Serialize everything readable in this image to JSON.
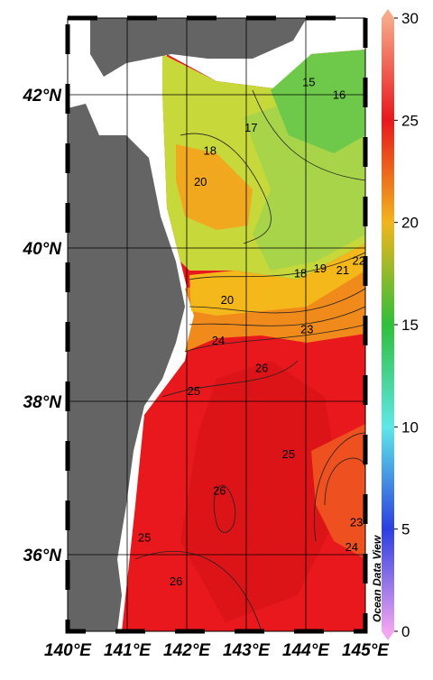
{
  "map": {
    "type": "contour-map",
    "xlim": [
      140,
      145
    ],
    "ylim": [
      35,
      43
    ],
    "xticks": [
      {
        "value": 140,
        "label": "140°E"
      },
      {
        "value": 141,
        "label": "141°E"
      },
      {
        "value": 142,
        "label": "142°E"
      },
      {
        "value": 143,
        "label": "143°E"
      },
      {
        "value": 144,
        "label": "144°E"
      },
      {
        "value": 145,
        "label": "145°E"
      }
    ],
    "yticks": [
      {
        "value": 36,
        "label": "36°N"
      },
      {
        "value": 38,
        "label": "38°N"
      },
      {
        "value": 40,
        "label": "40°N"
      },
      {
        "value": 42,
        "label": "42°N"
      }
    ],
    "grid": true,
    "colorbar": {
      "lim": [
        0,
        30
      ],
      "ticks": [
        0,
        5,
        10,
        15,
        20,
        25,
        30
      ],
      "colors": [
        "#f3a6f0",
        "#2b3fe0",
        "#5ee8e8",
        "#2fbf3a",
        "#f2b51c",
        "#e8181c",
        "#f7a888"
      ]
    },
    "contour_labels": [
      {
        "value": 15,
        "lon": 144.05,
        "lat": 42.15
      },
      {
        "value": 16,
        "lon": 144.56,
        "lat": 41.99
      },
      {
        "value": 17,
        "lon": 143.08,
        "lat": 41.56
      },
      {
        "value": 18,
        "lon": 142.39,
        "lat": 41.26
      },
      {
        "value": 20,
        "lon": 142.23,
        "lat": 40.85
      },
      {
        "value": 18,
        "lon": 143.91,
        "lat": 39.66
      },
      {
        "value": 19,
        "lon": 144.24,
        "lat": 39.72
      },
      {
        "value": 21,
        "lon": 144.62,
        "lat": 39.7
      },
      {
        "value": 22,
        "lon": 144.89,
        "lat": 39.82
      },
      {
        "value": 20,
        "lon": 142.68,
        "lat": 39.31
      },
      {
        "value": 23,
        "lon": 144.02,
        "lat": 38.93
      },
      {
        "value": 24,
        "lon": 142.53,
        "lat": 38.78
      },
      {
        "value": 26,
        "lon": 143.26,
        "lat": 38.42
      },
      {
        "value": 25,
        "lon": 142.12,
        "lat": 38.12
      },
      {
        "value": 25,
        "lon": 143.71,
        "lat": 37.3
      },
      {
        "value": 26,
        "lon": 142.55,
        "lat": 36.82
      },
      {
        "value": 25,
        "lon": 141.29,
        "lat": 36.21
      },
      {
        "value": 26,
        "lon": 141.82,
        "lat": 35.64
      },
      {
        "value": 23,
        "lon": 144.85,
        "lat": 36.41
      },
      {
        "value": 24,
        "lon": 144.77,
        "lat": 36.09
      }
    ],
    "credit": "Ocean Data View"
  }
}
